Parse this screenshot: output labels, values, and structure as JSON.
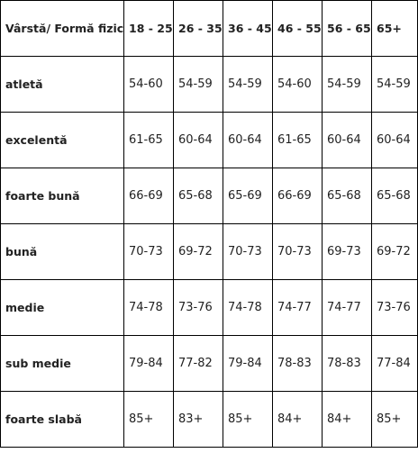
{
  "table": {
    "headers": [
      "Vârstă/ Formă fizică",
      "18 - 25",
      "26 - 35",
      "36 - 45",
      "46 - 55",
      "56 - 65",
      "65+"
    ],
    "rows": [
      {
        "label": "atletă",
        "values": [
          "54-60",
          "54-59",
          "54-59",
          "54-60",
          "54-59",
          "54-59"
        ]
      },
      {
        "label": "excelentă",
        "values": [
          "61-65",
          "60-64",
          "60-64",
          "61-65",
          "60-64",
          "60-64"
        ]
      },
      {
        "label": "foarte bună",
        "values": [
          "66-69",
          "65-68",
          "65-69",
          "66-69",
          "65-68",
          "65-68"
        ]
      },
      {
        "label": "bună",
        "values": [
          "70-73",
          "69-72",
          "70-73",
          "70-73",
          "69-73",
          "69-72"
        ]
      },
      {
        "label": "medie",
        "values": [
          "74-78",
          "73-76",
          "74-78",
          "74-77",
          "74-77",
          "73-76"
        ]
      },
      {
        "label": "sub medie",
        "values": [
          "79-84",
          "77-82",
          "79-84",
          "78-83",
          "78-83",
          "77-84"
        ]
      },
      {
        "label": "foarte slabă",
        "values": [
          "85+",
          "83+",
          "85+",
          "84+",
          "84+",
          "85+"
        ]
      }
    ]
  }
}
